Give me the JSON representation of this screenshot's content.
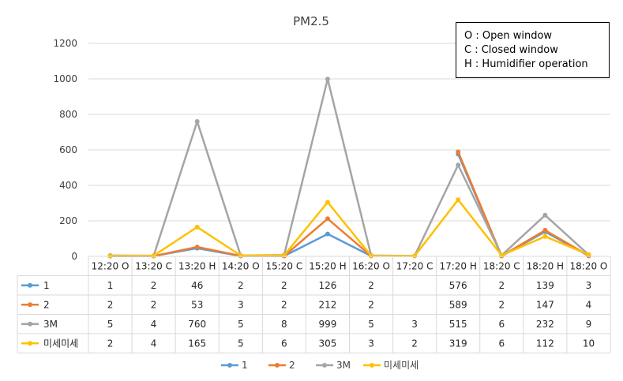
{
  "title": "PM2.5",
  "annotation_lines": [
    "O : Open window",
    "C : Closed window",
    "H : Humidifier operation"
  ],
  "chart_data": {
    "type": "line",
    "title": "PM2.5",
    "categories": [
      "12:20 O",
      "13:20 C",
      "13:20 H",
      "14:20 O",
      "15:20 C",
      "15:20 H",
      "16:20 O",
      "17:20 C",
      "17:20 H",
      "18:20 C",
      "18:20 H",
      "18:20 O"
    ],
    "ylim": [
      0,
      1200
    ],
    "yticks": [
      0,
      200,
      400,
      600,
      800,
      1000,
      1200
    ],
    "grid": true,
    "legend_position": "bottom",
    "series": [
      {
        "name": "1",
        "color": "#5B9BD5",
        "values": [
          1,
          2,
          46,
          2,
          2,
          126,
          2,
          null,
          576,
          2,
          139,
          3
        ],
        "labels": [
          "1",
          "2",
          "46",
          "2",
          "2",
          "126",
          "2",
          "",
          "576",
          "2",
          "139",
          "3"
        ]
      },
      {
        "name": "2",
        "color": "#ED7D31",
        "values": [
          2,
          2,
          53,
          3,
          2,
          212,
          2,
          null,
          589,
          2,
          147,
          4
        ],
        "labels": [
          "2",
          "2",
          "53",
          "3",
          "2",
          "212",
          "2",
          "",
          "589",
          "2",
          "147",
          "4"
        ]
      },
      {
        "name": "3M",
        "color": "#A5A5A5",
        "values": [
          5,
          4,
          760,
          5,
          8,
          999,
          5,
          3,
          515,
          6,
          232,
          9
        ],
        "labels": [
          "5",
          "4",
          "760",
          "5",
          "8",
          "999",
          "5",
          "3",
          "515",
          "6",
          "232",
          "9"
        ]
      },
      {
        "name": "미세미세",
        "color": "#FFC000",
        "values": [
          2,
          4,
          165,
          5,
          6,
          305,
          3,
          2,
          319,
          6,
          112,
          10
        ],
        "labels": [
          "2",
          "4",
          "165",
          "5",
          "6",
          "305",
          "3",
          "2",
          "319",
          "6",
          "112",
          "10"
        ]
      }
    ]
  }
}
